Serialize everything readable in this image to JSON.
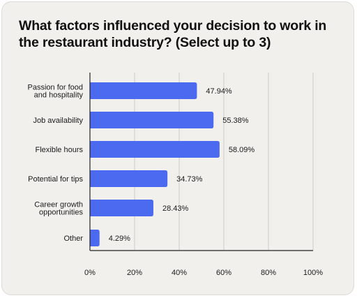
{
  "title": "What factors influenced your decision to work in the restaurant industry? (Select up to 3)",
  "colors": {
    "bar": "#4b6af0",
    "card_background": "#f1f0ec",
    "gridline": "#cfcdc8",
    "axis": "#222222"
  },
  "chart_data": {
    "type": "bar",
    "orientation": "horizontal",
    "title": "What factors influenced your decision to work in the restaurant industry? (Select up to 3)",
    "categories": [
      [
        "Passion for food",
        "and hospitality"
      ],
      [
        "Job availability"
      ],
      [
        "Flexible hours"
      ],
      [
        "Potential for tips"
      ],
      [
        "Career growth",
        "opportunities"
      ],
      [
        "Other"
      ]
    ],
    "values": [
      47.94,
      55.38,
      58.09,
      34.73,
      28.43,
      4.29
    ],
    "value_labels": [
      "47.94%",
      "55.38%",
      "58.09%",
      "34.73%",
      "28.43%",
      "4.29%"
    ],
    "xlim": [
      0,
      100
    ],
    "xticks": [
      0,
      20,
      40,
      60,
      80,
      100
    ],
    "xtick_labels": [
      "0%",
      "20%",
      "40%",
      "60%",
      "80%",
      "100%"
    ],
    "xlabel": "",
    "ylabel": "",
    "grid": "vertical",
    "legend": "none"
  }
}
